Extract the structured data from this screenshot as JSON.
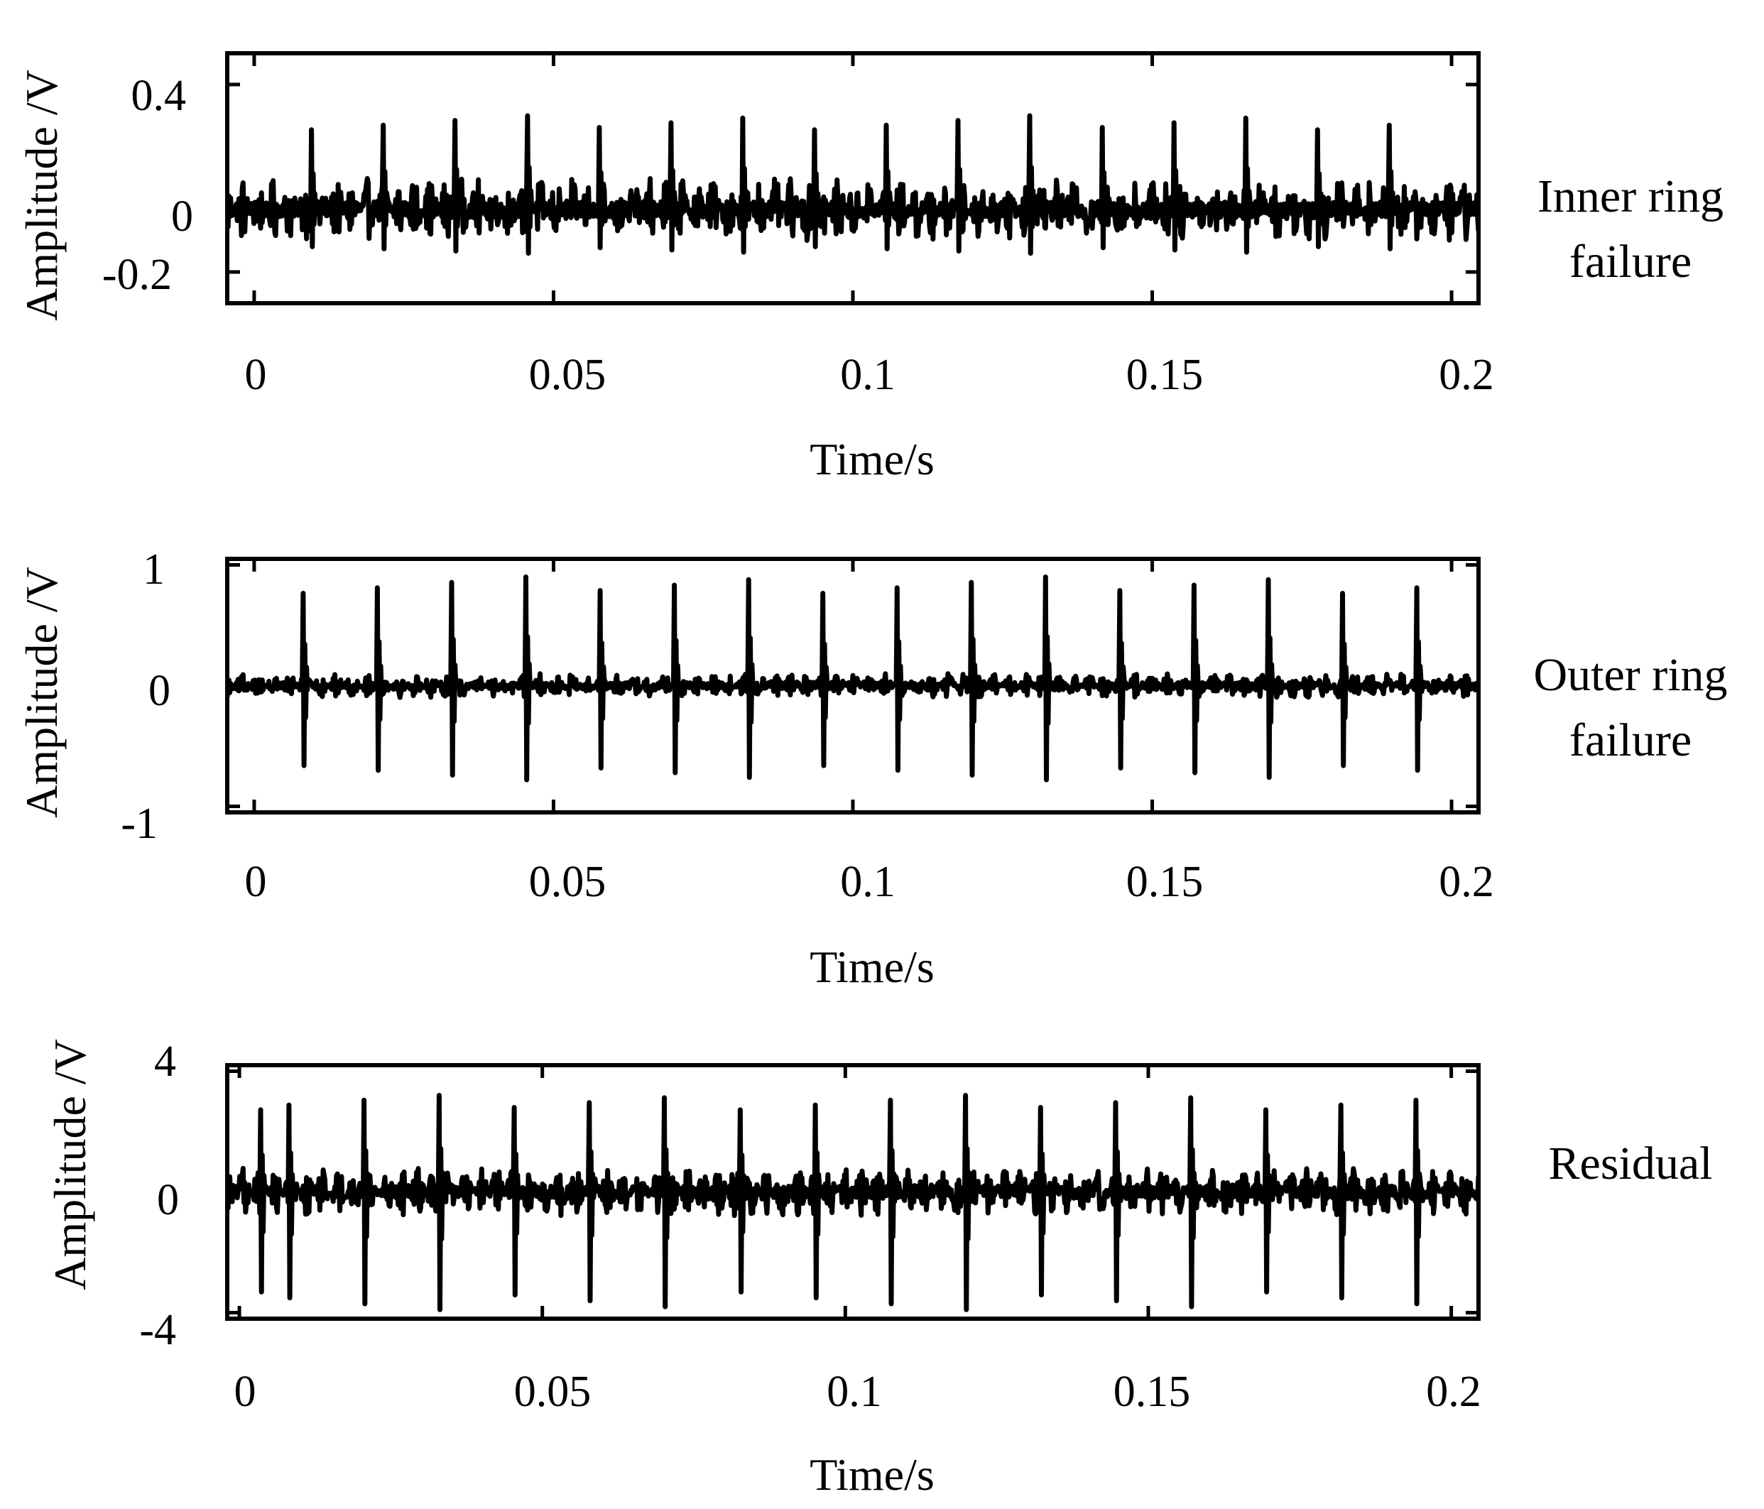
{
  "chart_data": [
    {
      "type": "line",
      "title": "",
      "xlabel": "Time/s",
      "ylabel": "Amplitude /V",
      "side_label": [
        "Inner ring",
        "failure"
      ],
      "x_ticks": [
        "0",
        "0.05",
        "0.1",
        "0.15",
        "0.2"
      ],
      "x_tick_values": [
        0,
        0.05,
        0.1,
        0.15,
        0.2
      ],
      "y_ticks": [
        "0.4",
        "0",
        "-0.2"
      ],
      "y_tick_values": [
        0.4,
        0,
        -0.2
      ],
      "xlim": [
        -0.0045,
        0.2045
      ],
      "ylim": [
        -0.3,
        0.5
      ],
      "grid": false,
      "line_color": "#000000",
      "impulse_times": [
        0.0096,
        0.0216,
        0.0336,
        0.0456,
        0.0576,
        0.0696,
        0.0816,
        0.0936,
        0.1056,
        0.1176,
        0.1296,
        0.1416,
        0.1536,
        0.1656,
        0.1776,
        0.1896
      ],
      "impulse_peak": 0.3,
      "impulse_trough": -0.14,
      "noise_level": 0.1
    },
    {
      "type": "line",
      "title": "",
      "xlabel": "Time/s",
      "ylabel": "Amplitude /V",
      "side_label": [
        "Outer ring",
        "failure"
      ],
      "x_ticks": [
        "0",
        "0.05",
        "0.1",
        "0.15",
        "0.2"
      ],
      "x_tick_values": [
        0,
        0.05,
        0.1,
        0.15,
        0.2
      ],
      "y_ticks": [
        "1",
        "0",
        "-1"
      ],
      "y_tick_values": [
        1,
        0,
        -1
      ],
      "xlim": [
        -0.0045,
        0.2045
      ],
      "ylim": [
        -1.05,
        1.05
      ],
      "grid": false,
      "line_color": "#000000",
      "impulse_times": [
        0.0082,
        0.0206,
        0.033,
        0.0454,
        0.0578,
        0.0702,
        0.0826,
        0.095,
        0.1074,
        0.1198,
        0.1322,
        0.1446,
        0.157,
        0.1694,
        0.1818,
        0.1942
      ],
      "impulse_peak": 0.9,
      "impulse_trough": -0.78,
      "noise_level": 0.1
    },
    {
      "type": "line",
      "title": "",
      "xlabel": "Time/s",
      "ylabel": "Amplitude /V",
      "side_label": [
        "Residual"
      ],
      "x_ticks": [
        "0",
        "0.05",
        "0.1",
        "0.15",
        "0.2"
      ],
      "x_tick_values": [
        0,
        0.05,
        0.1,
        0.15,
        0.2
      ],
      "y_ticks": [
        "4",
        "0",
        "-4"
      ],
      "y_tick_values": [
        4,
        0,
        -4
      ],
      "xlim": [
        -0.002,
        0.2045
      ],
      "ylim": [
        -4.2,
        4.2
      ],
      "grid": false,
      "line_color": "#000000",
      "impulse_times": [
        0.0035,
        0.0082,
        0.0206,
        0.033,
        0.0454,
        0.0578,
        0.0702,
        0.0826,
        0.095,
        0.1074,
        0.1198,
        0.1322,
        0.1446,
        0.157,
        0.1694,
        0.1818,
        0.1942
      ],
      "impulse_peak": 3.2,
      "impulse_trough": -3.9,
      "noise_level": 0.8
    }
  ]
}
